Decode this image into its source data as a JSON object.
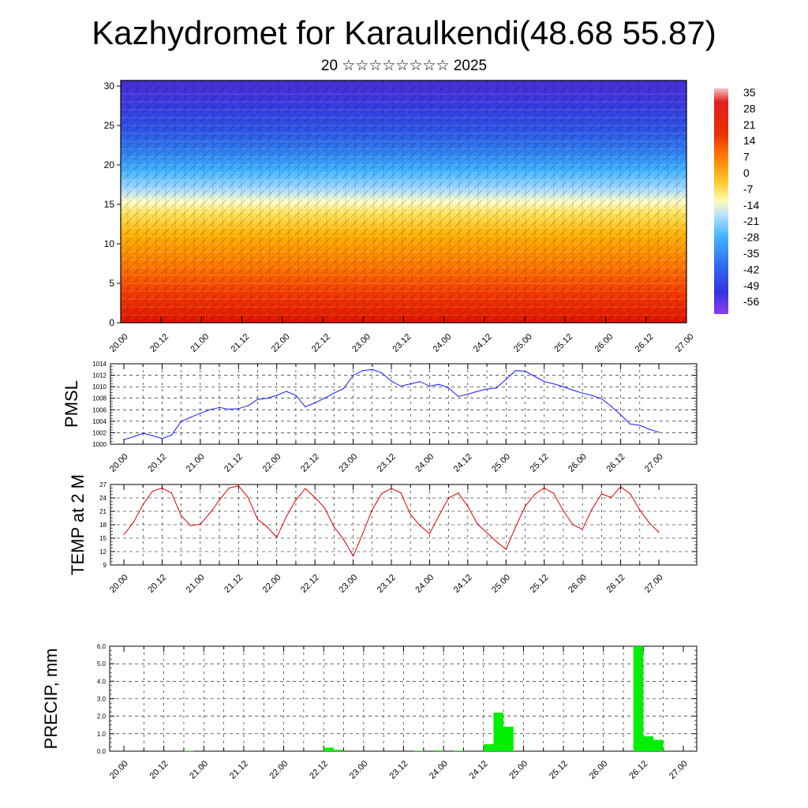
{
  "header": {
    "title": "Kazhydromet for Karaulkendi(48.68 55.87)",
    "subtitle": "20 ☆☆☆☆☆☆☆☆ 2025"
  },
  "colors": {
    "pmsl_line": "#1a1aff",
    "temp_line": "#e00000",
    "precip_bar": "#00ee00",
    "colorbar": [
      "#7a2ef0",
      "#3030ff",
      "#3a78ff",
      "#3fb0ff",
      "#a8dcff",
      "#ffffd0",
      "#ffe060",
      "#ffb000",
      "#ff6a00",
      "#ee1a00",
      "#c80000",
      "#f4b8b8"
    ]
  },
  "chart_data": [
    {
      "id": "cross-section",
      "type": "heatmap",
      "x_tick_labels": [
        "20.00",
        "20.12",
        "21.00",
        "21.12",
        "22.00",
        "22.12",
        "23.00",
        "23.12",
        "24.00",
        "24.12",
        "25.00",
        "25.12",
        "26.00",
        "26.12",
        "27.00"
      ],
      "y_ticks": [
        0,
        5,
        10,
        15,
        20,
        25,
        30
      ],
      "ylim": [
        0,
        30.7
      ],
      "colorbar_labels": [
        "35",
        "28",
        "21",
        "14",
        "7",
        "0",
        "-7",
        "-14",
        "-21",
        "-28",
        "-35",
        "-42",
        "-49",
        "-56"
      ],
      "temperature_bands": [
        {
          "height": 0,
          "value": 35
        },
        {
          "height": 5,
          "value": 21
        },
        {
          "height": 10,
          "value": 7
        },
        {
          "height": 15,
          "value": -14
        },
        {
          "height": 20,
          "value": -35
        },
        {
          "height": 25,
          "value": -49
        },
        {
          "height": 30,
          "value": -56
        }
      ]
    },
    {
      "id": "pmsl",
      "type": "line",
      "ylabel": "PMSL",
      "ylim": [
        1000,
        1014
      ],
      "y_ticks": [
        1000,
        1002,
        1004,
        1006,
        1008,
        1010,
        1012,
        1014
      ],
      "x_tick_labels": [
        "20.00",
        "20.12",
        "21.00",
        "21.12",
        "22.00",
        "22.12",
        "23.00",
        "23.12",
        "24.00",
        "24.12",
        "25.00",
        "25.12",
        "26.00",
        "26.12",
        "27.00"
      ],
      "x": [
        0,
        3,
        6,
        9,
        12,
        15,
        18,
        21,
        24,
        27,
        30,
        33,
        36,
        39,
        42,
        45,
        48,
        51,
        54,
        57,
        60,
        63,
        66,
        69,
        72,
        75,
        78,
        81,
        84,
        87,
        90,
        93,
        96,
        99,
        102,
        105,
        108,
        111,
        114,
        117,
        120,
        123,
        126,
        129,
        132,
        135,
        138,
        141,
        144,
        147,
        150,
        153,
        156,
        159,
        162,
        165,
        168
      ],
      "values": [
        1000.8,
        1001.3,
        1001.9,
        1001.5,
        1001.0,
        1001.6,
        1004.0,
        1004.7,
        1005.4,
        1006.0,
        1006.4,
        1006.1,
        1006.2,
        1006.7,
        1007.8,
        1008.0,
        1008.5,
        1009.2,
        1008.5,
        1006.5,
        1007.2,
        1008.0,
        1008.9,
        1009.7,
        1012.0,
        1012.8,
        1013.0,
        1012.4,
        1011.0,
        1010.1,
        1010.5,
        1010.9,
        1010.1,
        1010.4,
        1009.8,
        1008.3,
        1008.7,
        1009.2,
        1009.6,
        1009.8,
        1011.3,
        1012.8,
        1012.7,
        1011.8,
        1010.9,
        1010.5,
        1010.0,
        1009.4,
        1008.9,
        1008.5,
        1007.9,
        1006.6,
        1005.1,
        1003.5,
        1003.3,
        1002.6,
        1002.1
      ]
    },
    {
      "id": "temp2m",
      "type": "line",
      "ylabel": "TEMP at 2 M",
      "ylim": [
        9,
        27
      ],
      "y_ticks": [
        9,
        12,
        15,
        18,
        21,
        24,
        27
      ],
      "x_tick_labels": [
        "20.00",
        "20.12",
        "21.00",
        "21.12",
        "22.00",
        "22.12",
        "23.00",
        "23.12",
        "24.00",
        "24.12",
        "25.00",
        "25.12",
        "26.00",
        "26.12",
        "27.00"
      ],
      "x": [
        0,
        3,
        6,
        9,
        12,
        15,
        18,
        21,
        24,
        27,
        30,
        33,
        36,
        39,
        42,
        45,
        48,
        51,
        54,
        57,
        60,
        63,
        66,
        69,
        72,
        75,
        78,
        81,
        84,
        87,
        90,
        93,
        96,
        99,
        102,
        105,
        108,
        111,
        114,
        117,
        120,
        123,
        126,
        129,
        132,
        135,
        138,
        141,
        144,
        147,
        150,
        153,
        156,
        159,
        162,
        165,
        168
      ],
      "values": [
        15.8,
        18.5,
        22.5,
        25.5,
        26.2,
        25.1,
        20.0,
        17.8,
        18.1,
        20.6,
        23.5,
        26.2,
        26.7,
        24.1,
        19.2,
        17.5,
        15.2,
        19.8,
        23.5,
        26.1,
        24.1,
        21.8,
        17.5,
        14.7,
        11.0,
        16.0,
        21.4,
        25.0,
        26.1,
        25.1,
        20.3,
        17.8,
        16.0,
        20.1,
        24.0,
        25.1,
        22.1,
        18.2,
        16.2,
        14.2,
        12.5,
        17.5,
        22.1,
        24.8,
        26.2,
        25.0,
        21.1,
        18.0,
        17.0,
        21.5,
        24.9,
        24.1,
        26.5,
        24.9,
        21.3,
        18.4,
        16.3
      ]
    },
    {
      "id": "precip",
      "type": "bar",
      "ylabel": "PRECIP, mm",
      "ylim": [
        0,
        6
      ],
      "y_tick_labels": [
        "0.0",
        "1.0",
        "2.0",
        "3.0",
        "4.0",
        "5.0",
        "6.0"
      ],
      "x_tick_labels": [
        "20.00",
        "20.12",
        "21.00",
        "21.12",
        "22.00",
        "22.12",
        "23.00",
        "23.12",
        "24.00",
        "24.12",
        "25.00",
        "25.12",
        "26.00",
        "26.12",
        "27.00"
      ],
      "x": [
        18,
        60,
        63,
        87,
        93,
        99,
        108,
        111,
        114,
        153,
        156,
        159
      ],
      "values": [
        0.02,
        0.2,
        0.08,
        0.03,
        0.04,
        0.03,
        0.4,
        2.2,
        1.4,
        6.0,
        0.85,
        0.65
      ]
    }
  ]
}
